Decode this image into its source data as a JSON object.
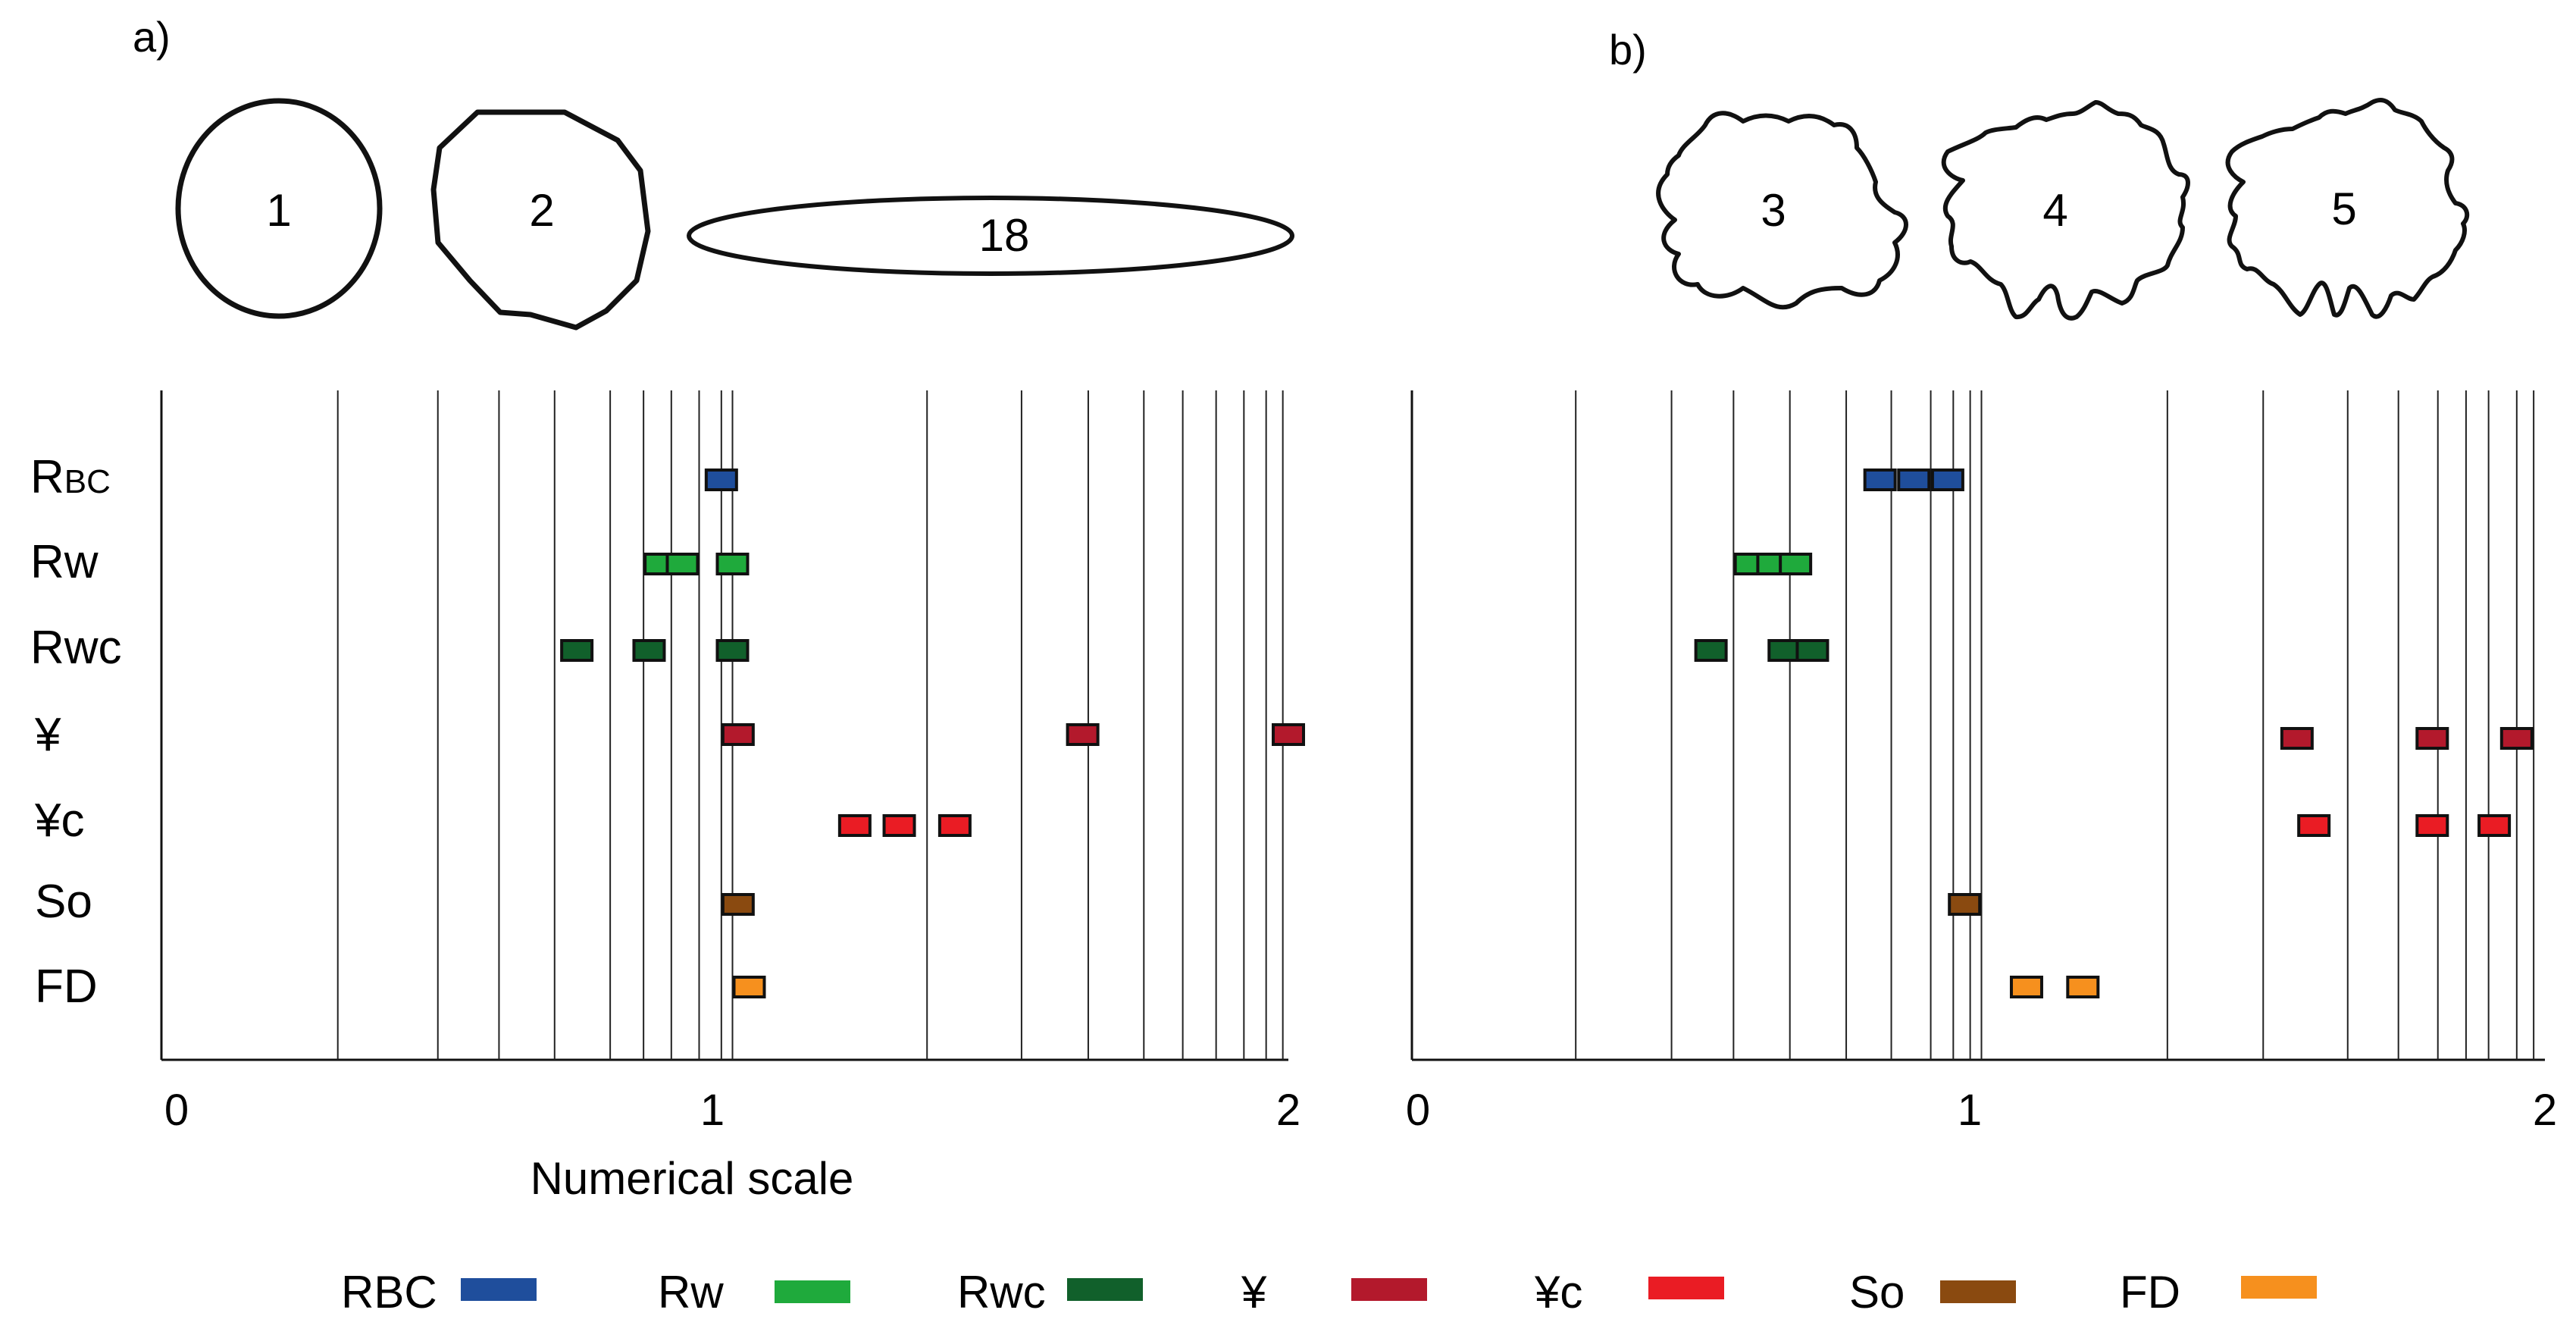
{
  "panels": [
    {
      "id": "a",
      "label": "a)",
      "shapes": [
        {
          "label": "1",
          "kind": "circle"
        },
        {
          "label": "2",
          "kind": "polygon"
        },
        {
          "label": "18",
          "kind": "ellipse"
        }
      ],
      "axis": {
        "min": 0,
        "max": 2,
        "tick_labels": [
          "0",
          "1",
          "2"
        ],
        "xlabel": "Numerical scale"
      },
      "gridlines": [
        0.29,
        0.47,
        0.58,
        0.68,
        0.78,
        0.84,
        0.89,
        0.94,
        0.98,
        1.0,
        1.35,
        1.52,
        1.64,
        1.74,
        1.81,
        1.87,
        1.92,
        1.96,
        1.99
      ],
      "rows": [
        {
          "label": "RBC",
          "color": "#1f4e9c",
          "values": [
            0.98
          ]
        },
        {
          "label": "Rw",
          "color": "#1faa3c",
          "values": [
            0.87,
            0.91,
            1.0
          ]
        },
        {
          "label": "Rwc",
          "color": "#11602b",
          "values": [
            0.72,
            0.85,
            1.0
          ]
        },
        {
          "label": "¥",
          "color": "#b3192c",
          "values": [
            1.01,
            1.63,
            2.0
          ]
        },
        {
          "label": "¥c",
          "color": "#ea1c24",
          "values": [
            1.22,
            1.3,
            1.4
          ]
        },
        {
          "label": "So",
          "color": "#8a4a10",
          "values": [
            1.01
          ]
        },
        {
          "label": "FD",
          "color": "#f6901e",
          "values": [
            1.03
          ]
        }
      ]
    },
    {
      "id": "b",
      "label": "b)",
      "shapes": [
        {
          "label": "3",
          "kind": "blob"
        },
        {
          "label": "4",
          "kind": "blob"
        },
        {
          "label": "5",
          "kind": "blob"
        }
      ],
      "axis": {
        "min": 0,
        "max": 2,
        "tick_labels": [
          "0",
          "1",
          "2"
        ],
        "xlabel": ""
      },
      "gridlines": [
        0.28,
        0.45,
        0.56,
        0.66,
        0.76,
        0.84,
        0.91,
        0.95,
        0.98,
        1.0,
        1.33,
        1.5,
        1.65,
        1.74,
        1.81,
        1.86,
        1.9,
        1.95,
        1.98
      ],
      "rows": [
        {
          "label": "RBC",
          "color": "#1f4e9c",
          "values": [
            0.82,
            0.88,
            0.94
          ]
        },
        {
          "label": "Rw",
          "color": "#1faa3c",
          "values": [
            0.59,
            0.63,
            0.67
          ]
        },
        {
          "label": "Rwc",
          "color": "#11602b",
          "values": [
            0.52,
            0.65,
            0.7
          ]
        },
        {
          "label": "¥",
          "color": "#b3192c",
          "values": [
            1.56,
            1.8,
            1.95
          ]
        },
        {
          "label": "¥c",
          "color": "#ea1c24",
          "values": [
            1.59,
            1.8,
            1.91
          ]
        },
        {
          "label": "So",
          "color": "#8a4a10",
          "values": [
            0.97
          ]
        },
        {
          "label": "FD",
          "color": "#f6901e",
          "values": [
            1.08,
            1.18
          ]
        }
      ]
    }
  ],
  "legend": [
    {
      "label": "RBC",
      "color": "#1f4e9c"
    },
    {
      "label": "Rw",
      "color": "#1faa3c"
    },
    {
      "label": "Rwc",
      "color": "#11602b"
    },
    {
      "label": "¥",
      "color": "#b3192c"
    },
    {
      "label": "¥c",
      "color": "#ea1c24"
    },
    {
      "label": "So",
      "color": "#8a4a10"
    },
    {
      "label": "FD",
      "color": "#f6901e"
    }
  ]
}
